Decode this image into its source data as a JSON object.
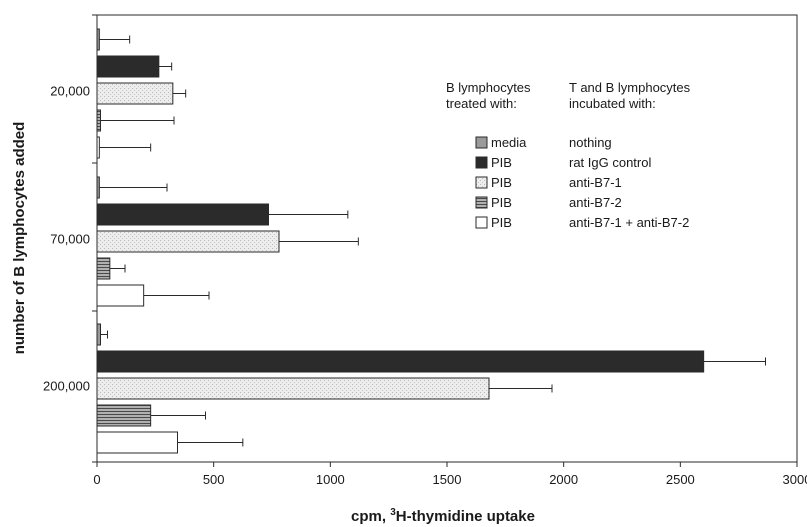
{
  "chart_data": {
    "type": "bar",
    "orientation": "horizontal",
    "xlabel_main": "cpm, ",
    "xlabel_sup": "3",
    "xlabel_rest": "H-thymidine uptake",
    "ylabel": "number of B lymphocytes added",
    "xlim": [
      0,
      3000
    ],
    "xticks": [
      0,
      500,
      1000,
      1500,
      2000,
      2500,
      3000
    ],
    "grid": false,
    "categories": [
      "20,000",
      "70,000",
      "200,000"
    ],
    "series": [
      {
        "values": [
          10,
          10,
          15
        ],
        "errors": [
          130,
          290,
          30
        ],
        "fill": "#9a9a9a",
        "pattern": "solid"
      },
      {
        "values": [
          265,
          735,
          2600
        ],
        "errors": [
          55,
          340,
          265
        ],
        "fill": "#2b2b2b",
        "pattern": "solid"
      },
      {
        "values": [
          325,
          780,
          1680
        ],
        "errors": [
          55,
          340,
          270
        ],
        "fill": "#e8e8e8",
        "pattern": "stipple"
      },
      {
        "values": [
          15,
          55,
          230
        ],
        "errors": [
          315,
          65,
          235
        ],
        "fill": "#8a8a8a",
        "pattern": "hlines"
      },
      {
        "values": [
          10,
          200,
          345
        ],
        "errors": [
          220,
          280,
          280
        ],
        "fill": "#ffffff",
        "pattern": "solid"
      }
    ],
    "legend": {
      "placement": "right",
      "header_left": [
        "B lymphocytes",
        "treated with:"
      ],
      "header_right": [
        "T and B lymphocytes",
        "incubated with:"
      ],
      "entries": [
        {
          "treated": "media",
          "incubated": "nothing"
        },
        {
          "treated": "PIB",
          "incubated": "rat IgG control"
        },
        {
          "treated": "PIB",
          "incubated": "anti-B7-1"
        },
        {
          "treated": "PIB",
          "incubated": "anti-B7-2"
        },
        {
          "treated": "PIB",
          "incubated": "anti-B7-1 + anti-B7-2"
        }
      ]
    }
  }
}
